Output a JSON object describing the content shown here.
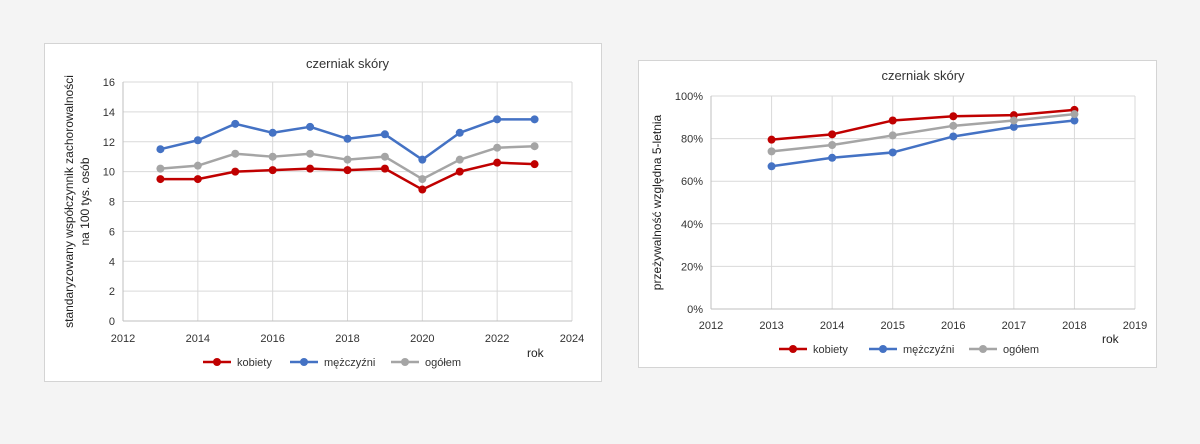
{
  "chart_data": [
    {
      "type": "line",
      "title": "czerniak skóry",
      "ylabel_lines": [
        "standaryzowany współczynnik zachorowalności",
        "na 100 tys. osób"
      ],
      "xlabel": "rok",
      "xlim": [
        2012,
        2024
      ],
      "ylim": [
        0,
        16
      ],
      "xticks": [
        2012,
        2014,
        2016,
        2018,
        2020,
        2022,
        2024
      ],
      "yticks": [
        0,
        2,
        4,
        6,
        8,
        10,
        12,
        14,
        16
      ],
      "ytick_labels": [
        "0",
        "2",
        "4",
        "6",
        "8",
        "10",
        "12",
        "14",
        "16"
      ],
      "x": [
        2013,
        2014,
        2015,
        2016,
        2017,
        2018,
        2019,
        2020,
        2021,
        2022,
        2023
      ],
      "series": [
        {
          "name": "kobiety",
          "color": "#c00000",
          "values": [
            9.5,
            9.5,
            10.0,
            10.1,
            10.2,
            10.1,
            10.2,
            8.8,
            10.0,
            10.6,
            10.5
          ]
        },
        {
          "name": "mężczyźni",
          "color": "#4472c4",
          "values": [
            11.5,
            12.1,
            13.2,
            12.6,
            13.0,
            12.2,
            12.5,
            10.8,
            12.6,
            13.5,
            13.5
          ]
        },
        {
          "name": "ogółem",
          "color": "#a5a5a5",
          "values": [
            10.2,
            10.4,
            11.2,
            11.0,
            11.2,
            10.8,
            11.0,
            9.5,
            10.8,
            11.6,
            11.7
          ]
        }
      ]
    },
    {
      "type": "line",
      "title": "czerniak skóry",
      "ylabel_lines": [
        "przeżywalność względna 5-letnia"
      ],
      "xlabel": "rok",
      "xlim": [
        2012,
        2019
      ],
      "ylim": [
        0,
        100
      ],
      "xticks": [
        2012,
        2013,
        2014,
        2015,
        2016,
        2017,
        2018,
        2019
      ],
      "yticks": [
        0,
        20,
        40,
        60,
        80,
        100
      ],
      "ytick_labels": [
        "0%",
        "20%",
        "40%",
        "60%",
        "80%",
        "100%"
      ],
      "x": [
        2013,
        2014,
        2015,
        2016,
        2017,
        2018
      ],
      "series": [
        {
          "name": "kobiety",
          "color": "#c00000",
          "values": [
            79.5,
            82.0,
            88.5,
            90.5,
            91.0,
            93.5
          ]
        },
        {
          "name": "mężczyźni",
          "color": "#4472c4",
          "values": [
            67.0,
            71.0,
            73.5,
            81.0,
            85.5,
            88.5
          ]
        },
        {
          "name": "ogółem",
          "color": "#a5a5a5",
          "values": [
            74.0,
            77.0,
            81.5,
            86.0,
            88.5,
            91.5
          ]
        }
      ]
    }
  ]
}
